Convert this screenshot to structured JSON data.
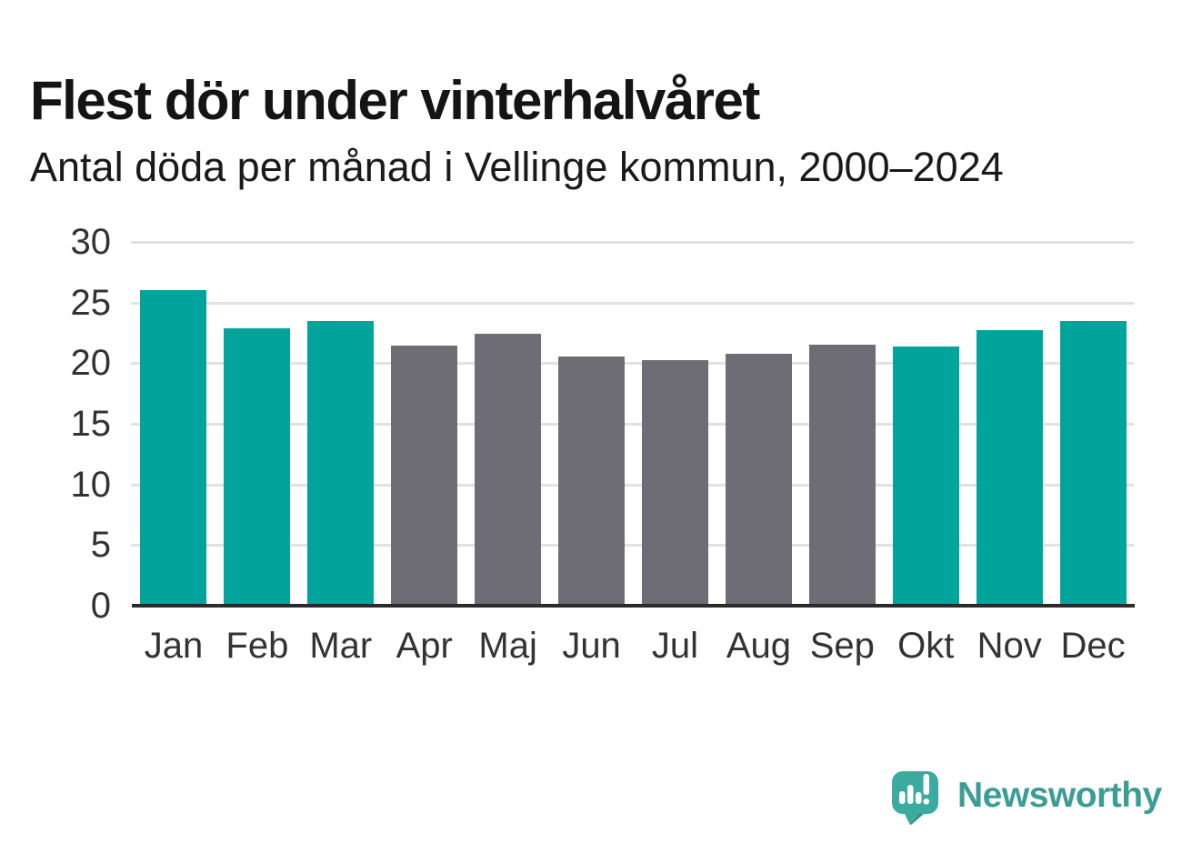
{
  "title": "Flest dör under vinterhalvåret",
  "subtitle": "Antal döda per månad i Vellinge kommun, 2000–2024",
  "chart_data": {
    "type": "bar",
    "title": "Flest dör under vinterhalvåret",
    "subtitle": "Antal döda per månad i Vellinge kommun, 2000–2024",
    "categories": [
      "Jan",
      "Feb",
      "Mar",
      "Apr",
      "Maj",
      "Jun",
      "Jul",
      "Aug",
      "Sep",
      "Okt",
      "Nov",
      "Dec"
    ],
    "values": [
      25.9,
      22.7,
      23.3,
      21.3,
      22.3,
      20.4,
      20.1,
      20.6,
      21.4,
      21.2,
      22.6,
      23.3
    ],
    "bar_groups": [
      "winter",
      "winter",
      "winter",
      "summer",
      "summer",
      "summer",
      "summer",
      "summer",
      "summer",
      "winter",
      "winter",
      "winter"
    ],
    "xlabel": "",
    "ylabel": "",
    "ylim": [
      0,
      30
    ],
    "yticks": [
      0,
      5,
      10,
      15,
      20,
      25,
      30
    ],
    "grid": true,
    "legend": "none"
  },
  "colors": {
    "winter_bar": "#00a49b",
    "summer_bar": "#6e6d75",
    "gridline": "#e2e2e2",
    "axis": "#2b2b2b",
    "tick_text": "#333333",
    "title_text": "#141414",
    "logo_bubble": "#3baa9f",
    "logo_bubble_shade": "#2f8c84",
    "logo_text": "#3c9d96"
  },
  "branding": {
    "logo_text": "Newsworthy",
    "logo_icon": "newsworthy-speech-bubble-bar-chart-icon"
  }
}
